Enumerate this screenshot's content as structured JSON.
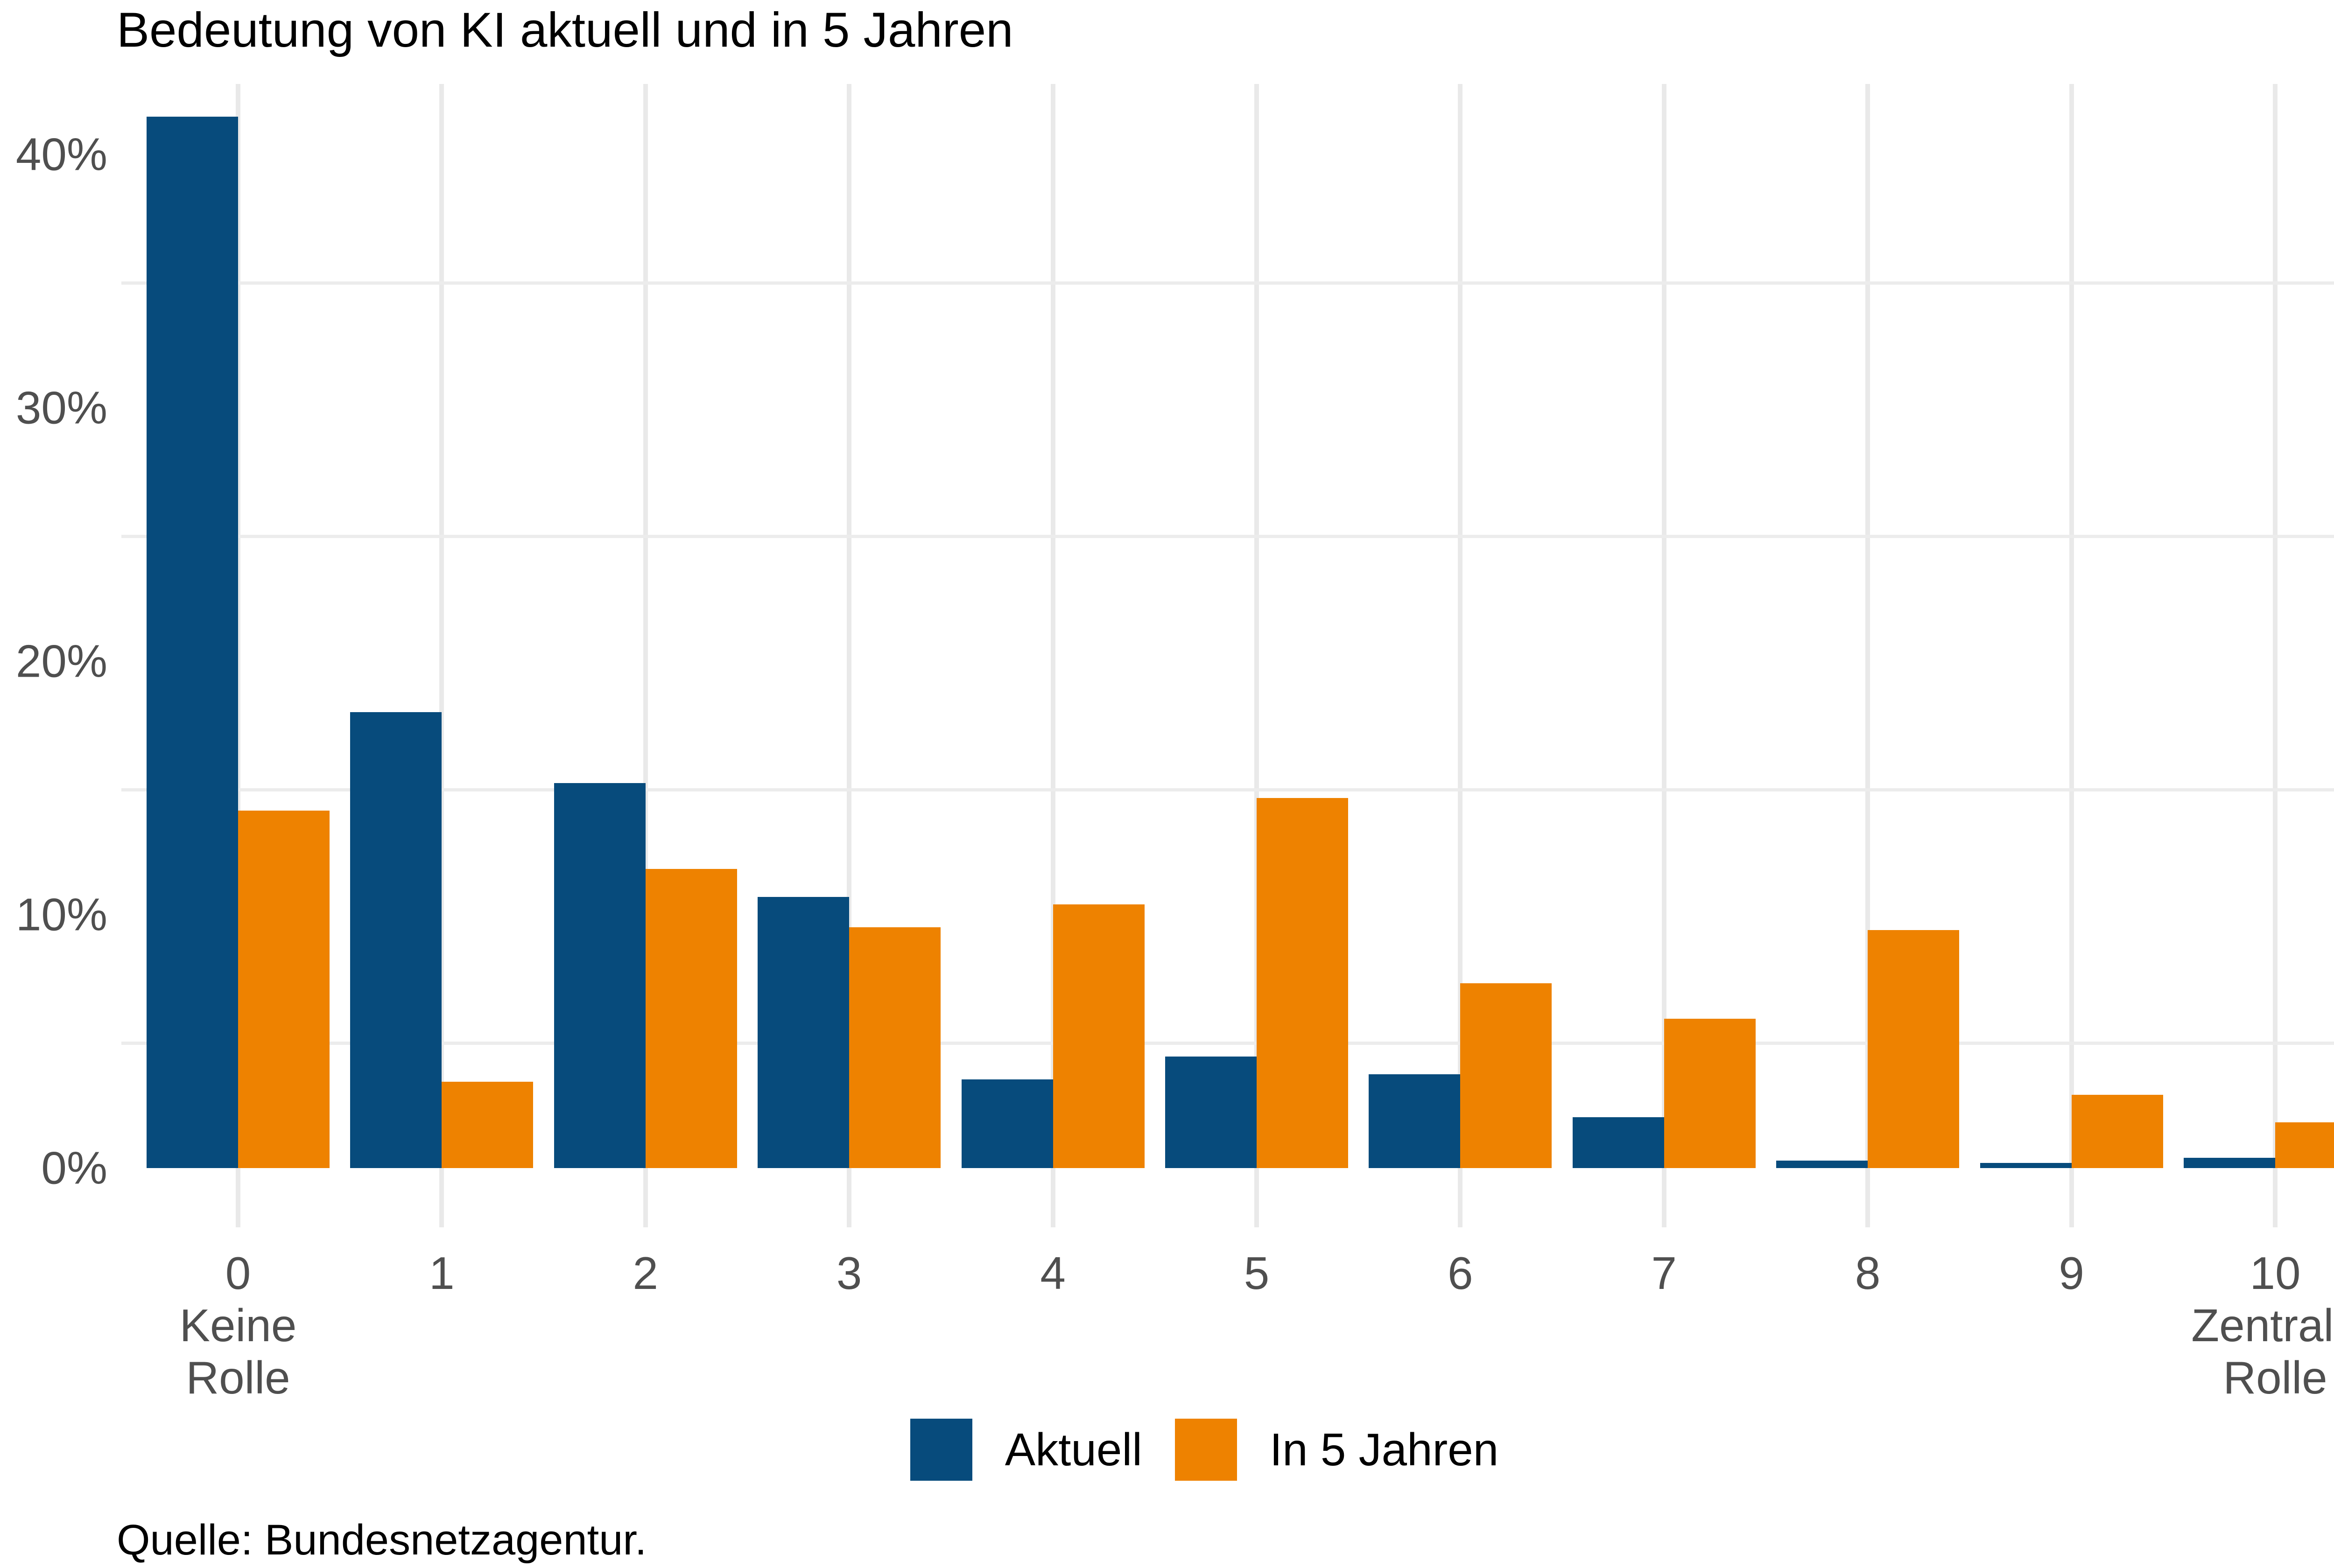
{
  "title": "Bedeutung von KI aktuell und in 5 Jahren",
  "source": "Quelle: Bundesnetzagentur.",
  "legend": {
    "items": [
      {
        "label": "Aktuell",
        "color": "#074b7c"
      },
      {
        "label": "In 5 Jahren",
        "color": "#ee8200"
      }
    ]
  },
  "chart_data": {
    "type": "bar",
    "title": "Bedeutung von KI aktuell und in 5 Jahren",
    "categories": [
      "0",
      "1",
      "2",
      "3",
      "4",
      "5",
      "6",
      "7",
      "8",
      "9",
      "10"
    ],
    "category_sublabels": {
      "0": [
        "Keine",
        "Rolle"
      ],
      "10": [
        "Zentrale",
        "Rolle"
      ]
    },
    "series": [
      {
        "name": "Aktuell",
        "color": "#074b7c",
        "values": [
          41.5,
          18.0,
          15.2,
          10.7,
          3.5,
          4.4,
          3.7,
          2.0,
          0.3,
          0.2,
          0.4
        ]
      },
      {
        "name": "In 5 Jahren",
        "color": "#ee8200",
        "values": [
          14.1,
          3.4,
          11.8,
          9.5,
          10.4,
          14.6,
          7.3,
          5.9,
          9.4,
          2.9,
          1.8
        ]
      }
    ],
    "xlabel": "",
    "ylabel": "",
    "y_ticks": [
      {
        "value": 0,
        "label": "0%"
      },
      {
        "value": 10,
        "label": "10%"
      },
      {
        "value": 20,
        "label": "20%"
      },
      {
        "value": 30,
        "label": "30%"
      },
      {
        "value": 40,
        "label": "40%"
      }
    ],
    "minor_gridlines": [
      5,
      15,
      25,
      35
    ],
    "ylim": [
      0,
      43
    ],
    "grid": "minor-horizontal + vertical category lines",
    "legend_position": "bottom-center",
    "colors": {
      "background": "#ffffff",
      "gridline": "#ececec",
      "tick_text": "#4f4f4f",
      "title_text": "#000000"
    }
  }
}
